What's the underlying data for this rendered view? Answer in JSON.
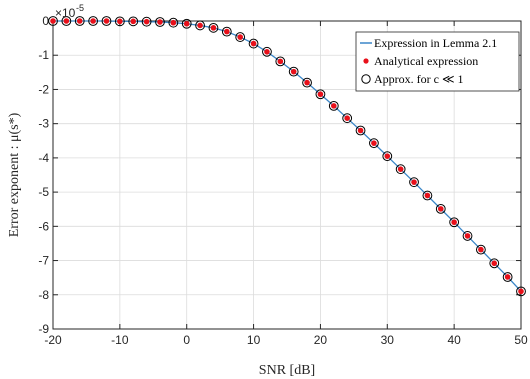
{
  "colors": {
    "line": "#3a86c8",
    "marker": "#e8101a",
    "circle": "#000000",
    "axis": "#262626",
    "grid": "#dcdcdc"
  },
  "chart_data": {
    "type": "line",
    "xlabel": "SNR [dB]",
    "ylabel": "Error exponent : μ(s*)",
    "xlim": [
      -20,
      50
    ],
    "ylim": [
      -9,
      0
    ],
    "y_scale_multiplier": "×10",
    "y_scale_exponent": "-5",
    "grid": true,
    "legend_position": "top-right",
    "x_ticks": [
      "-20",
      "-10",
      "0",
      "10",
      "20",
      "30",
      "40",
      "50"
    ],
    "y_ticks": [
      "0",
      "-1",
      "-2",
      "-3",
      "-4",
      "-5",
      "-6",
      "-7",
      "-8",
      "-9"
    ],
    "x": [
      -20,
      -18,
      -16,
      -14,
      -12,
      -10,
      -8,
      -6,
      -4,
      -2,
      0,
      2,
      4,
      6,
      8,
      10,
      12,
      14,
      16,
      18,
      20,
      22,
      24,
      26,
      28,
      30,
      32,
      34,
      36,
      38,
      40,
      42,
      44,
      46,
      48,
      50
    ],
    "series": [
      {
        "name": "Expression in Lemma 2.1",
        "style": "line",
        "values": [
          0,
          0,
          0,
          0,
          0,
          -0.01,
          -0.01,
          -0.02,
          -0.03,
          -0.05,
          -0.08,
          -0.13,
          -0.2,
          -0.31,
          -0.47,
          -0.66,
          -0.9,
          -1.18,
          -1.48,
          -1.8,
          -2.14,
          -2.48,
          -2.84,
          -3.2,
          -3.57,
          -3.95,
          -4.33,
          -4.71,
          -5.1,
          -5.49,
          -5.88,
          -6.28,
          -6.68,
          -7.08,
          -7.48,
          -7.9
        ]
      },
      {
        "name": "Analytical expression",
        "style": "dot",
        "values": [
          0,
          0,
          0,
          0,
          0,
          -0.01,
          -0.01,
          -0.02,
          -0.03,
          -0.05,
          -0.08,
          -0.13,
          -0.2,
          -0.31,
          -0.47,
          -0.66,
          -0.9,
          -1.18,
          -1.48,
          -1.8,
          -2.14,
          -2.48,
          -2.84,
          -3.2,
          -3.57,
          -3.95,
          -4.33,
          -4.71,
          -5.1,
          -5.49,
          -5.88,
          -6.28,
          -6.68,
          -7.08,
          -7.48,
          -7.9
        ]
      },
      {
        "name": "Approx. for c ≪ 1",
        "style": "circle",
        "values": [
          0,
          0,
          0,
          0,
          0,
          -0.01,
          -0.01,
          -0.02,
          -0.03,
          -0.05,
          -0.08,
          -0.13,
          -0.2,
          -0.31,
          -0.47,
          -0.66,
          -0.9,
          -1.18,
          -1.48,
          -1.8,
          -2.14,
          -2.48,
          -2.84,
          -3.2,
          -3.57,
          -3.95,
          -4.33,
          -4.71,
          -5.1,
          -5.49,
          -5.88,
          -6.28,
          -6.68,
          -7.08,
          -7.48,
          -7.9
        ]
      }
    ]
  }
}
